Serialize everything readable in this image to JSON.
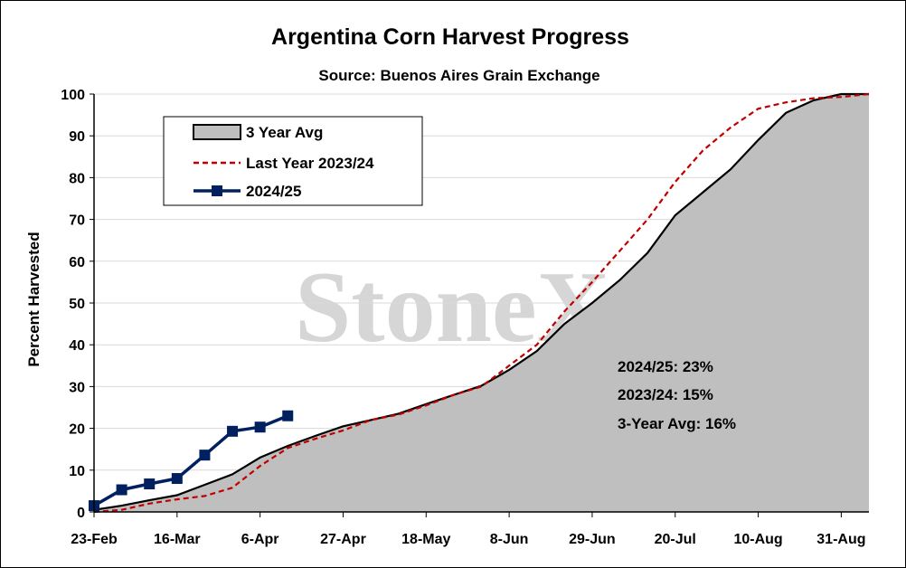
{
  "chart_data": {
    "type": "area",
    "title": "Argentina Corn Harvest Progress",
    "subtitle": "Source: Buenos Aires Grain Exchange",
    "ylabel": "Percent Harvested",
    "xlabel": "",
    "ylim": [
      0,
      100
    ],
    "yticks": [
      0,
      10,
      20,
      30,
      40,
      50,
      60,
      70,
      80,
      90,
      100
    ],
    "x_tick_labels": [
      "23-Feb",
      "16-Mar",
      "6-Apr",
      "27-Apr",
      "18-May",
      "8-Jun",
      "29-Jun",
      "20-Jul",
      "10-Aug",
      "31-Aug"
    ],
    "x_week_range": [
      0,
      28
    ],
    "grid": "horizontal",
    "legend_position": "top-left",
    "series": [
      {
        "name": "3 Year Avg",
        "style": "area",
        "fill": "#bfbfbf",
        "stroke": "#000000",
        "points": [
          [
            0,
            0.5
          ],
          [
            1,
            1.5
          ],
          [
            2,
            2.8
          ],
          [
            3,
            4
          ],
          [
            4,
            6.5
          ],
          [
            5,
            9
          ],
          [
            6,
            13
          ],
          [
            7,
            15.8
          ],
          [
            8,
            18.2
          ],
          [
            9,
            20.5
          ],
          [
            10,
            22
          ],
          [
            11,
            23.5
          ],
          [
            12,
            25.8
          ],
          [
            13,
            28
          ],
          [
            14,
            30.2
          ],
          [
            15,
            34
          ],
          [
            16,
            38.5
          ],
          [
            17,
            45
          ],
          [
            18,
            50
          ],
          [
            19,
            55.5
          ],
          [
            20,
            62
          ],
          [
            21,
            71
          ],
          [
            22,
            76.5
          ],
          [
            23,
            82
          ],
          [
            24,
            89
          ],
          [
            25,
            95.5
          ],
          [
            26,
            98.5
          ],
          [
            27,
            100
          ],
          [
            28,
            100
          ]
        ]
      },
      {
        "name": "Last Year 2023/24",
        "style": "dashed",
        "stroke": "#c00000",
        "points": [
          [
            0,
            0
          ],
          [
            1,
            0.5
          ],
          [
            2,
            2
          ],
          [
            3,
            3
          ],
          [
            4,
            3.8
          ],
          [
            5,
            5.8
          ],
          [
            6,
            11
          ],
          [
            7,
            15.3
          ],
          [
            8,
            17.5
          ],
          [
            9,
            19.5
          ],
          [
            10,
            22
          ],
          [
            11,
            23.3
          ],
          [
            12,
            25.5
          ],
          [
            13,
            28
          ],
          [
            14,
            30
          ],
          [
            15,
            35
          ],
          [
            16,
            40
          ],
          [
            17,
            48
          ],
          [
            18,
            55
          ],
          [
            19,
            62.5
          ],
          [
            20,
            70
          ],
          [
            21,
            79
          ],
          [
            22,
            86.5
          ],
          [
            23,
            92
          ],
          [
            24,
            96.5
          ],
          [
            25,
            98
          ],
          [
            26,
            99
          ],
          [
            27,
            99.3
          ],
          [
            28,
            100
          ]
        ]
      },
      {
        "name": "2024/25",
        "style": "line-marker",
        "stroke": "#002060",
        "points": [
          [
            0,
            1.5
          ],
          [
            1,
            5.3
          ],
          [
            2,
            6.7
          ],
          [
            3,
            8
          ],
          [
            4,
            13.6
          ],
          [
            5,
            19.3
          ],
          [
            6,
            20.3
          ],
          [
            7,
            23
          ]
        ]
      }
    ],
    "annotations": [
      "2024/25: 23%",
      "2023/24: 15%",
      "3-Year Avg: 16%"
    ],
    "watermark": "StoneX"
  }
}
